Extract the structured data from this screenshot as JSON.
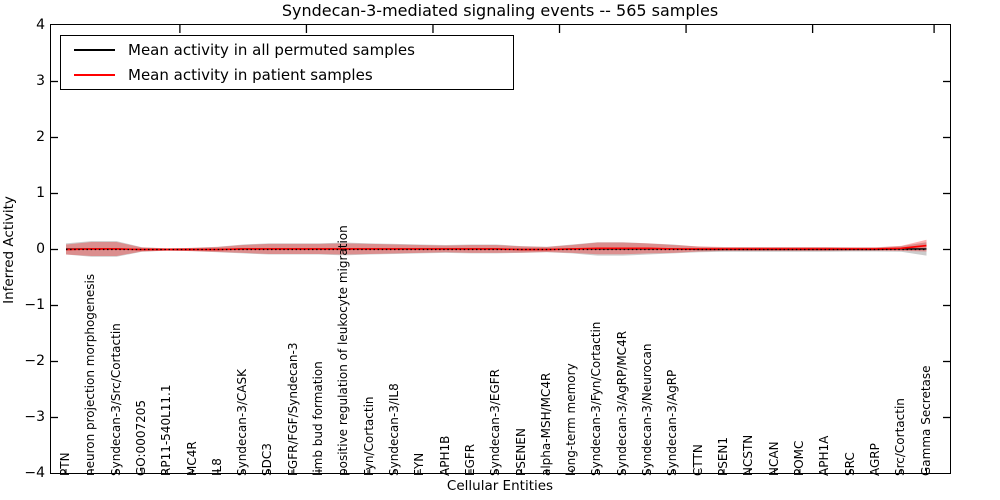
{
  "figure": {
    "title": "Syndecan-3-mediated signaling events -- 565 samples",
    "xlabel": "Cellular Entities",
    "ylabel": "Inferred Activity"
  },
  "legend": {
    "items": [
      {
        "label": "Mean activity in all permuted samples",
        "color": "#000000"
      },
      {
        "label": "Mean activity in patient samples",
        "color": "#ff0000"
      }
    ],
    "position": "upper left"
  },
  "colors": {
    "patient_line": "#ff0000",
    "permuted_line": "#000000",
    "patient_band": "rgba(255,0,0,0.30)",
    "permuted_band": "rgba(128,128,128,0.40)",
    "zero_line": "#000000",
    "axes": "#000000"
  },
  "chart_data": {
    "type": "line",
    "title": "Syndecan-3-mediated signaling events -- 565 samples",
    "xlabel": "Cellular Entities",
    "ylabel": "Inferred Activity",
    "ylim": [
      -4,
      4
    ],
    "yticks": [
      4,
      3,
      2,
      1,
      0,
      -1,
      -2,
      -3,
      -4
    ],
    "grid": false,
    "legend_position": "upper left",
    "zero_line": {
      "style": "dotted",
      "color": "#000000",
      "y": 0
    },
    "categories": [
      "PTN",
      "neuron projection morphogenesis",
      "Syndecan-3/Src/Cortactin",
      "GO:0007205",
      "RP11-540L11.1",
      "MC4R",
      "IL8",
      "Syndecan-3/CASK",
      "SDC3",
      "FGFR/FGF/Syndecan-3",
      "limb bud formation",
      "positive regulation of leukocyte migration",
      "Fyn/Cortactin",
      "Syndecan-3/IL8",
      "FYN",
      "APH1B",
      "EGFR",
      "Syndecan-3/EGFR",
      "PSENEN",
      "alpha-MSH/MC4R",
      "long-term memory",
      "Syndecan-3/Fyn/Cortactin",
      "Syndecan-3/AgRP/MC4R",
      "Syndecan-3/Neurocan",
      "Syndecan-3/AgRP",
      "CTTN",
      "PSEN1",
      "NCSTN",
      "NCAN",
      "POMC",
      "APH1A",
      "SRC",
      "AGRP",
      "Src/Cortactin",
      "Gamma Secretase"
    ],
    "series": [
      {
        "name": "Mean activity in all permuted samples",
        "color": "#000000",
        "values": [
          0.01,
          0.01,
          0.01,
          0.0,
          0.0,
          0.0,
          0.0,
          0.01,
          0.01,
          0.01,
          0.01,
          0.01,
          0.01,
          0.01,
          0.01,
          0.01,
          0.01,
          0.01,
          0.0,
          0.0,
          0.01,
          0.01,
          0.01,
          0.01,
          0.01,
          0.0,
          0.0,
          0.0,
          0.0,
          0.0,
          0.0,
          0.0,
          0.0,
          0.01,
          0.01
        ]
      },
      {
        "name": "Mean activity in patient samples",
        "color": "#ff0000",
        "values": [
          0.0,
          0.01,
          0.01,
          0.0,
          0.0,
          0.0,
          0.0,
          0.01,
          0.01,
          0.01,
          0.01,
          0.01,
          0.01,
          0.01,
          0.01,
          0.01,
          0.01,
          0.01,
          0.0,
          0.0,
          0.01,
          0.02,
          0.02,
          0.02,
          0.01,
          0.01,
          0.01,
          0.01,
          0.01,
          0.01,
          0.01,
          0.01,
          0.01,
          0.02,
          0.07
        ]
      }
    ],
    "bands": [
      {
        "series": "Mean activity in all permuted samples",
        "color": "rgba(128,128,128,0.40)",
        "halfwidth": [
          0.1,
          0.14,
          0.14,
          0.04,
          0.02,
          0.03,
          0.05,
          0.08,
          0.1,
          0.1,
          0.1,
          0.115,
          0.1,
          0.09,
          0.08,
          0.07,
          0.08,
          0.08,
          0.06,
          0.05,
          0.08,
          0.12,
          0.12,
          0.1,
          0.08,
          0.05,
          0.04,
          0.04,
          0.04,
          0.04,
          0.04,
          0.035,
          0.035,
          0.05,
          0.12
        ]
      },
      {
        "series": "Mean activity in patient samples",
        "color": "rgba(255,0,0,0.30)",
        "halfwidth": [
          0.09,
          0.125,
          0.125,
          0.035,
          0.02,
          0.03,
          0.045,
          0.07,
          0.09,
          0.09,
          0.09,
          0.1,
          0.09,
          0.08,
          0.07,
          0.06,
          0.07,
          0.07,
          0.055,
          0.045,
          0.07,
          0.105,
          0.105,
          0.09,
          0.07,
          0.045,
          0.035,
          0.035,
          0.035,
          0.035,
          0.035,
          0.03,
          0.03,
          0.045,
          0.105
        ]
      }
    ]
  }
}
